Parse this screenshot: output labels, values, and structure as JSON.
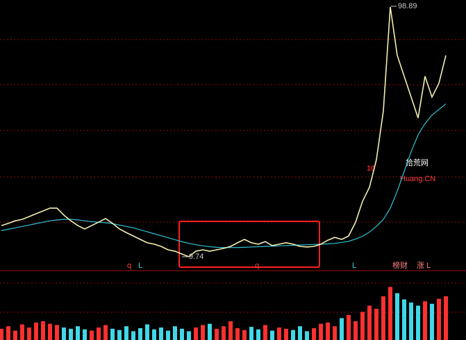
{
  "chart_data": {
    "type": "line",
    "ylim": [
      5,
      101
    ],
    "series": [
      {
        "color": "#f4f0b0",
        "values": [
          20.8,
          21.6,
          22.5,
          23.0,
          24.0,
          25.0,
          26.0,
          27.0,
          27.0,
          24.5,
          22.5,
          20.8,
          19.6,
          20.8,
          22.0,
          23.3,
          21.6,
          19.6,
          18.3,
          17.1,
          15.9,
          14.7,
          14.2,
          13.4,
          12.2,
          11.7,
          10.7,
          9.74,
          11.7,
          12.2,
          11.7,
          12.2,
          12.7,
          13.4,
          14.7,
          15.9,
          14.7,
          14.2,
          15.1,
          13.7,
          14.2,
          14.7,
          14.2,
          13.4,
          13.2,
          13.4,
          14.2,
          15.6,
          16.6,
          15.9,
          17.1,
          22.0,
          29.4,
          34.4,
          44.2,
          61.5,
          98.4,
          81.2,
          73.8,
          66.4,
          59.0,
          73.8,
          66.4,
          71.3,
          81.2
        ]
      },
      {
        "color": "#2ec4d8",
        "values": [
          19,
          19.5,
          20,
          20.5,
          21,
          21.5,
          22,
          22.5,
          22.8,
          23,
          23,
          22.8,
          22.5,
          22.2,
          22,
          21.8,
          21.5,
          21,
          20.5,
          20,
          19.3,
          18.6,
          17.9,
          17.2,
          16.5,
          15.8,
          15.1,
          14.5,
          14,
          13.6,
          13.3,
          13.1,
          13,
          13,
          13,
          13.1,
          13.2,
          13.3,
          13.4,
          13.5,
          13.6,
          13.7,
          13.8,
          13.9,
          14,
          14.1,
          14.2,
          14.3,
          14.5,
          14.8,
          15.2,
          16,
          17,
          18.5,
          20.5,
          23,
          27,
          33,
          40,
          47,
          53,
          57,
          60,
          62,
          64
        ]
      }
    ],
    "volume": {
      "vlim": [
        0,
        100
      ],
      "up_color": "#ff3030",
      "down_color": "#40d8e8",
      "values": [
        18,
        22,
        15,
        25,
        20,
        28,
        30,
        26,
        24,
        20,
        18,
        22,
        17,
        15,
        20,
        24,
        18,
        16,
        22,
        14,
        19,
        25,
        17,
        20,
        15,
        22,
        18,
        14,
        20,
        24,
        26,
        18,
        22,
        30,
        19,
        16,
        21,
        17,
        24,
        15,
        20,
        18,
        16,
        22,
        14,
        19,
        26,
        28,
        22,
        35,
        40,
        30,
        45,
        55,
        50,
        70,
        85,
        75,
        65,
        60,
        55,
        62,
        58,
        66,
        70
      ]
    },
    "annotations": [
      "98.89",
      "9.74",
      "q",
      "L",
      "q",
      "L",
      "榜财",
      "涨",
      "L"
    ],
    "watermark": {
      "number": "10",
      "name": "拾荒网",
      "site": "Huang.CN"
    }
  }
}
